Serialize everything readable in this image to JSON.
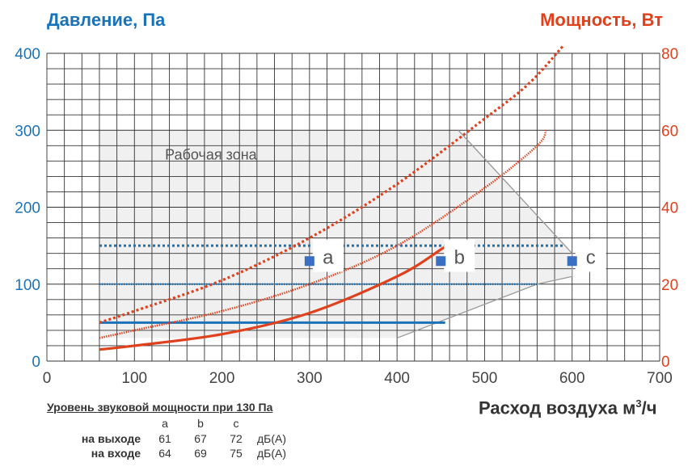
{
  "chart_data": {
    "type": "line",
    "title_left": "Давление, Па",
    "title_right": "Мощность, Вт",
    "xlabel": "Расход воздуха м",
    "xlabel_sup": "3",
    "xlabel_suffix": "/ч",
    "xlim": [
      0,
      700
    ],
    "ylim_left": [
      0,
      400
    ],
    "ylim_right": [
      0,
      80
    ],
    "x_ticks": [
      "0",
      "100",
      "200",
      "300",
      "400",
      "500",
      "600",
      "700"
    ],
    "y_left_ticks": [
      "0",
      "100",
      "200",
      "300",
      "400"
    ],
    "y_right_ticks": [
      "0",
      "20",
      "40",
      "60",
      "80"
    ],
    "zone_label": "Рабочая зона",
    "colors": {
      "pressure": "#1a73b8",
      "power": "#e0401c",
      "zone": "#f0f0f0",
      "zone_edge": "#999999",
      "grid": "#333333"
    },
    "working_zone": [
      [
        60,
        300
      ],
      [
        470,
        300
      ],
      [
        600,
        140
      ],
      [
        600,
        110
      ],
      [
        560,
        100
      ],
      [
        400,
        30
      ],
      [
        60,
        30
      ]
    ],
    "pressure_lines": [
      {
        "style": "dotted",
        "x": [
          60,
          590
        ],
        "y": [
          150,
          150
        ]
      },
      {
        "style": "fine",
        "x": [
          60,
          560
        ],
        "y": [
          100,
          100
        ]
      },
      {
        "style": "solid",
        "x": [
          60,
          455
        ],
        "y": [
          50,
          50
        ]
      }
    ],
    "power_curves": [
      {
        "style": "dotted",
        "points": [
          [
            60,
            10
          ],
          [
            100,
            13
          ],
          [
            200,
            21
          ],
          [
            300,
            32
          ],
          [
            400,
            46
          ],
          [
            500,
            63
          ],
          [
            550,
            72
          ],
          [
            590,
            82
          ]
        ]
      },
      {
        "style": "fine",
        "points": [
          [
            60,
            6
          ],
          [
            100,
            8
          ],
          [
            200,
            13
          ],
          [
            300,
            20
          ],
          [
            400,
            30
          ],
          [
            500,
            45
          ],
          [
            560,
            56
          ],
          [
            560,
            56
          ],
          [
            570,
            60
          ]
        ]
      },
      {
        "style": "solid",
        "points": [
          [
            60,
            3
          ],
          [
            100,
            4
          ],
          [
            200,
            7
          ],
          [
            300,
            12.5
          ],
          [
            400,
            22
          ],
          [
            450,
            29
          ],
          [
            455,
            30
          ]
        ]
      }
    ],
    "markers": [
      {
        "label": "a",
        "x": 300,
        "y": 130
      },
      {
        "label": "b",
        "x": 450,
        "y": 130
      },
      {
        "label": "c",
        "x": 600,
        "y": 130
      }
    ]
  },
  "sound": {
    "title": "Уровень звуковой мощности при 130 Па",
    "columns": [
      "a",
      "b",
      "c"
    ],
    "unit": "дБ(А)",
    "rows": [
      {
        "label": "на выходе",
        "values": [
          "61",
          "67",
          "72"
        ]
      },
      {
        "label": "на входе",
        "values": [
          "64",
          "69",
          "75"
        ]
      }
    ]
  }
}
